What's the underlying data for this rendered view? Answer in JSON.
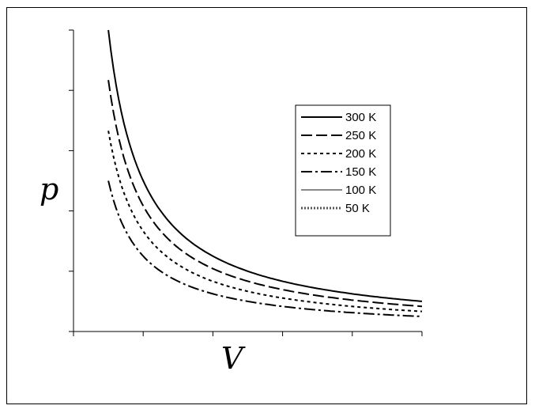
{
  "chart_data": {
    "type": "line",
    "title": "",
    "xlabel": "V",
    "ylabel": "p",
    "grid": false,
    "legend_position": "right",
    "x_ticks_labeled": false,
    "y_ticks_labeled": false,
    "xlim": [
      0,
      5
    ],
    "ylim": [
      0,
      5
    ],
    "series": [
      {
        "name": "300 K",
        "dash": "solid",
        "x": [
          0.5,
          0.7,
          1.0,
          1.5,
          2.0,
          3.0,
          4.0,
          5.0
        ],
        "y": [
          5.0,
          3.57,
          2.5,
          1.67,
          1.25,
          0.83,
          0.63,
          0.5
        ]
      },
      {
        "name": "250 K",
        "dash": "long-dash",
        "x": [
          0.5,
          0.7,
          1.0,
          1.5,
          2.0,
          3.0,
          4.0,
          5.0
        ],
        "y": [
          4.17,
          2.98,
          2.08,
          1.39,
          1.04,
          0.69,
          0.52,
          0.42
        ]
      },
      {
        "name": "200 K",
        "dash": "short-dash",
        "x": [
          0.5,
          0.7,
          1.0,
          1.5,
          2.0,
          3.0,
          4.0,
          5.0
        ],
        "y": [
          3.33,
          2.38,
          1.67,
          1.11,
          0.83,
          0.56,
          0.42,
          0.33
        ]
      },
      {
        "name": "150 K",
        "dash": "dash-dot",
        "x": [
          0.5,
          0.7,
          1.0,
          1.5,
          2.0,
          3.0,
          4.0,
          5.0
        ],
        "y": [
          2.5,
          1.79,
          1.25,
          0.83,
          0.63,
          0.42,
          0.31,
          0.25
        ]
      },
      {
        "name": "100 K",
        "dash": "gray",
        "x": [],
        "y": []
      },
      {
        "name": "50 K",
        "dash": "dotted-double",
        "x": [],
        "y": []
      }
    ]
  }
}
